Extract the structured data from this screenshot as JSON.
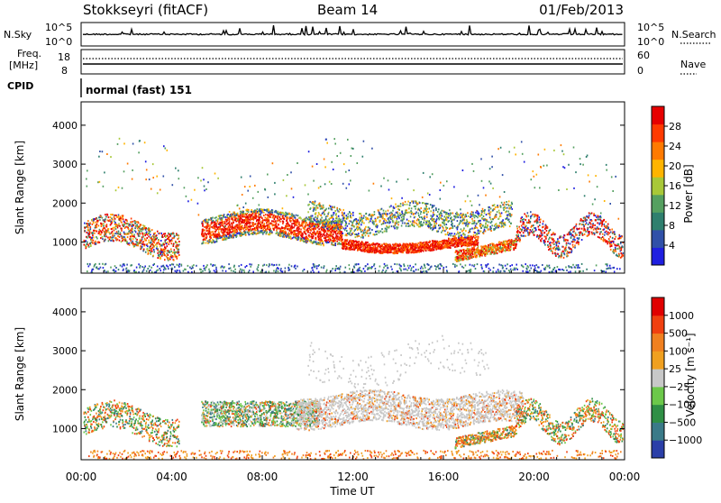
{
  "header": {
    "station": "Stokkseyri (fitACF)",
    "beam": "Beam 14",
    "date": "01/Feb/2013"
  },
  "top_panels": {
    "nsky_label": "N.Sky",
    "nsky_tick_top": "10^5",
    "nsky_tick_bottom": "10^0",
    "nsearch_label": "N.Search",
    "freq_label_1": "Freq.",
    "freq_label_2": "[MHz]",
    "freq_tick_top": "18",
    "freq_tick_bottom": "8",
    "nave_tick_top": "60",
    "nave_tick_bottom": "0",
    "nave_label": "Nave",
    "cpid_label": "CPID",
    "cpid_value": "normal (fast) 151"
  },
  "chart_data": [
    {
      "type": "heatmap",
      "name": "power",
      "ylabel": "Slant Range [km]",
      "xlabel": "",
      "ylim": [
        200,
        4600
      ],
      "yticks": [
        "1000",
        "2000",
        "3000",
        "4000"
      ],
      "colorbar": {
        "label": "Power [dB]",
        "ticks": [
          "4",
          "8",
          "12",
          "16",
          "20",
          "24",
          "28"
        ],
        "range": [
          0,
          32
        ],
        "colors": [
          "#1f1fe0",
          "#3050a8",
          "#2f7f6e",
          "#55a060",
          "#a8c838",
          "#ffb400",
          "#ff7a00",
          "#ff3a00",
          "#e60000"
        ]
      }
    },
    {
      "type": "heatmap",
      "name": "velocity",
      "ylabel": "Slant Range [km]",
      "xlabel": "Time UT",
      "ylim": [
        200,
        4600
      ],
      "yticks": [
        "1000",
        "2000",
        "3000",
        "4000"
      ],
      "colorbar": {
        "label": "Velocity [m s⁻¹]",
        "ticks": [
          "1000",
          "500",
          "100",
          "25",
          "−25",
          "−100",
          "−500",
          "−1000"
        ],
        "colors": [
          "#2b3fa8",
          "#3a7a88",
          "#2f8f45",
          "#6cc84a",
          "#c8c8c8",
          "#f0a020",
          "#f08020",
          "#f04010",
          "#e00000"
        ]
      },
      "xticks": [
        "00:00",
        "04:00",
        "08:00",
        "12:00",
        "16:00",
        "20:00",
        "00:00"
      ]
    }
  ]
}
